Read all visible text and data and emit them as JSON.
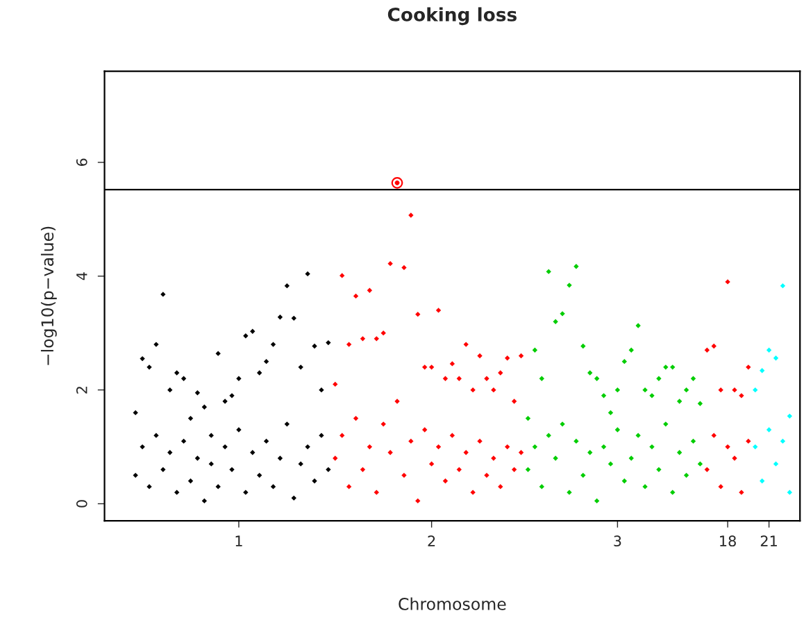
{
  "chart_data": {
    "type": "scatter",
    "title": "Cooking loss",
    "xlabel": "Chromosome",
    "ylabel": "−log10(p−value)",
    "categories": [
      null,
      null,
      null,
      null,
      null,
      null,
      null,
      null,
      null,
      null,
      null,
      null,
      null,
      null,
      null,
      null,
      null,
      null,
      null,
      "1",
      null,
      null,
      null,
      null,
      null,
      null,
      null,
      null,
      null,
      null,
      null,
      null,
      null,
      null,
      null,
      null,
      null,
      null,
      null,
      null,
      null,
      null,
      null,
      null,
      null,
      null,
      null,
      "2",
      null,
      null,
      null,
      null,
      null,
      null,
      null,
      null,
      null,
      null,
      null,
      null,
      null,
      null,
      null,
      null,
      null,
      null,
      null,
      null,
      null,
      null,
      null,
      null,
      null,
      null,
      "3",
      null,
      null,
      null,
      null,
      null,
      null,
      null,
      null,
      null,
      null,
      null,
      null,
      null,
      null,
      null,
      "18",
      null,
      null,
      null,
      null,
      null,
      "21",
      null,
      null,
      null,
      null
    ],
    "ylim": [
      -0.3,
      7.6
    ],
    "yticks": [
      0,
      2,
      4,
      6
    ],
    "grid": false,
    "marker": "diamond",
    "ref_lines": [
      {
        "axis": "y",
        "value": 5.52,
        "color": "#000000"
      }
    ],
    "series": [
      {
        "color": "#000000",
        "values": [
          null,
          null,
          null,
          null,
          1.6,
          2.55,
          2.4,
          2.8,
          3.68,
          2.0,
          2.3,
          2.2,
          1.5,
          1.95,
          1.7,
          1.2,
          2.64,
          1.8,
          1.9,
          2.2,
          2.95,
          3.03,
          2.3,
          2.5,
          2.8,
          3.28,
          3.83,
          3.26,
          2.4,
          4.04,
          2.77,
          2.0,
          2.83,
          null,
          null,
          null,
          null,
          null,
          null,
          null,
          null,
          null,
          null,
          null,
          null,
          null,
          null,
          null,
          null,
          null,
          null,
          null,
          null,
          null,
          null,
          null,
          null,
          null,
          null,
          null,
          null,
          null,
          null,
          null,
          null,
          null,
          null,
          null,
          null,
          null,
          null,
          null,
          null,
          null,
          null,
          null,
          null,
          null,
          null,
          null,
          null,
          null,
          null,
          null,
          null,
          null,
          null,
          null,
          null,
          null,
          null,
          null,
          null,
          null,
          null,
          null,
          null,
          null,
          null,
          null,
          null
        ]
      },
      {
        "color": "#000000",
        "values": [
          null,
          null,
          null,
          null,
          0.5,
          1.0,
          0.3,
          1.2,
          0.6,
          0.9,
          0.2,
          1.1,
          0.4,
          0.8,
          0.05,
          0.7,
          0.3,
          1.0,
          0.6,
          1.3,
          0.2,
          0.9,
          0.5,
          1.1,
          0.3,
          0.8,
          1.4,
          0.1,
          0.7,
          1.0,
          0.4,
          1.2,
          0.6,
          null,
          null,
          null,
          null,
          null,
          null,
          null,
          null,
          null,
          null,
          null,
          null,
          null,
          null,
          null,
          null,
          null,
          null,
          null,
          null,
          null,
          null,
          null,
          null,
          null,
          null,
          null,
          null,
          null,
          null,
          null,
          null,
          null,
          null,
          null,
          null,
          null,
          null,
          null,
          null,
          null,
          null,
          null,
          null,
          null,
          null,
          null,
          null,
          null,
          null,
          null,
          null,
          null,
          null,
          null,
          null,
          null,
          null,
          null,
          null,
          null,
          null,
          null,
          null,
          null,
          null,
          null,
          null
        ]
      },
      {
        "color": "#ff0000",
        "values": [
          null,
          null,
          null,
          null,
          null,
          null,
          null,
          null,
          null,
          null,
          null,
          null,
          null,
          null,
          null,
          null,
          null,
          null,
          null,
          null,
          null,
          null,
          null,
          null,
          null,
          null,
          null,
          null,
          null,
          null,
          null,
          null,
          null,
          2.1,
          4.01,
          2.8,
          3.65,
          2.9,
          3.75,
          2.9,
          3.0,
          4.22,
          5.64,
          4.15,
          5.07,
          3.33,
          2.4,
          2.4,
          3.4,
          2.2,
          2.46,
          2.2,
          2.8,
          2.0,
          2.6,
          2.2,
          2.0,
          2.3,
          2.56,
          1.8,
          2.6,
          null,
          null,
          null,
          null,
          null,
          null,
          null,
          null,
          null,
          null,
          null,
          null,
          null,
          null,
          null,
          null,
          null,
          null,
          null,
          null,
          null,
          null,
          null,
          null,
          null,
          null,
          null,
          null,
          null,
          null,
          null,
          null,
          null,
          null,
          null,
          null,
          null,
          null,
          null,
          null
        ]
      },
      {
        "color": "#ff0000",
        "values": [
          null,
          null,
          null,
          null,
          null,
          null,
          null,
          null,
          null,
          null,
          null,
          null,
          null,
          null,
          null,
          null,
          null,
          null,
          null,
          null,
          null,
          null,
          null,
          null,
          null,
          null,
          null,
          null,
          null,
          null,
          null,
          null,
          null,
          0.8,
          1.2,
          0.3,
          1.5,
          0.6,
          1.0,
          0.2,
          1.4,
          0.9,
          1.8,
          0.5,
          1.1,
          0.05,
          1.3,
          0.7,
          1.0,
          0.4,
          1.2,
          0.6,
          0.9,
          0.2,
          1.1,
          0.5,
          0.8,
          0.3,
          1.0,
          0.6,
          0.9,
          null,
          null,
          null,
          null,
          null,
          null,
          null,
          null,
          null,
          null,
          null,
          null,
          null,
          null,
          null,
          null,
          null,
          null,
          null,
          null,
          null,
          null,
          null,
          null,
          null,
          null,
          null,
          null,
          null,
          null,
          null,
          null,
          null,
          null,
          null,
          null,
          null,
          null,
          null,
          null
        ]
      },
      {
        "color": "#00cd00",
        "values": [
          null,
          null,
          null,
          null,
          null,
          null,
          null,
          null,
          null,
          null,
          null,
          null,
          null,
          null,
          null,
          null,
          null,
          null,
          null,
          null,
          null,
          null,
          null,
          null,
          null,
          null,
          null,
          null,
          null,
          null,
          null,
          null,
          null,
          null,
          null,
          null,
          null,
          null,
          null,
          null,
          null,
          null,
          null,
          null,
          null,
          null,
          null,
          null,
          null,
          null,
          null,
          null,
          null,
          null,
          null,
          null,
          null,
          null,
          null,
          null,
          null,
          1.5,
          2.7,
          2.2,
          4.08,
          3.2,
          3.34,
          3.84,
          4.17,
          2.77,
          2.3,
          2.2,
          1.9,
          1.6,
          2.0,
          2.5,
          2.7,
          3.13,
          2.0,
          1.9,
          2.2,
          2.4,
          2.4,
          1.8,
          2.0,
          2.2,
          1.76,
          null,
          null,
          null,
          null,
          null,
          null,
          null,
          null,
          null,
          null,
          null,
          null,
          null,
          null
        ]
      },
      {
        "color": "#00cd00",
        "values": [
          null,
          null,
          null,
          null,
          null,
          null,
          null,
          null,
          null,
          null,
          null,
          null,
          null,
          null,
          null,
          null,
          null,
          null,
          null,
          null,
          null,
          null,
          null,
          null,
          null,
          null,
          null,
          null,
          null,
          null,
          null,
          null,
          null,
          null,
          null,
          null,
          null,
          null,
          null,
          null,
          null,
          null,
          null,
          null,
          null,
          null,
          null,
          null,
          null,
          null,
          null,
          null,
          null,
          null,
          null,
          null,
          null,
          null,
          null,
          null,
          null,
          0.6,
          1.0,
          0.3,
          1.2,
          0.8,
          1.4,
          0.2,
          1.1,
          0.5,
          0.9,
          0.05,
          1.0,
          0.7,
          1.3,
          0.4,
          0.8,
          1.2,
          0.3,
          1.0,
          0.6,
          1.4,
          0.2,
          0.9,
          0.5,
          1.1,
          0.7,
          null,
          null,
          null,
          null,
          null,
          null,
          null,
          null,
          null,
          null,
          null,
          null,
          null,
          null
        ]
      },
      {
        "color": "#ff0000",
        "values": [
          null,
          null,
          null,
          null,
          null,
          null,
          null,
          null,
          null,
          null,
          null,
          null,
          null,
          null,
          null,
          null,
          null,
          null,
          null,
          null,
          null,
          null,
          null,
          null,
          null,
          null,
          null,
          null,
          null,
          null,
          null,
          null,
          null,
          null,
          null,
          null,
          null,
          null,
          null,
          null,
          null,
          null,
          null,
          null,
          null,
          null,
          null,
          null,
          null,
          null,
          null,
          null,
          null,
          null,
          null,
          null,
          null,
          null,
          null,
          null,
          null,
          null,
          null,
          null,
          null,
          null,
          null,
          null,
          null,
          null,
          null,
          null,
          null,
          null,
          null,
          null,
          null,
          null,
          null,
          null,
          null,
          null,
          null,
          null,
          null,
          null,
          null,
          2.7,
          2.77,
          2.0,
          3.9,
          2.0,
          1.9,
          2.4,
          null,
          null,
          null,
          null,
          null,
          null,
          null
        ]
      },
      {
        "color": "#ff0000",
        "values": [
          null,
          null,
          null,
          null,
          null,
          null,
          null,
          null,
          null,
          null,
          null,
          null,
          null,
          null,
          null,
          null,
          null,
          null,
          null,
          null,
          null,
          null,
          null,
          null,
          null,
          null,
          null,
          null,
          null,
          null,
          null,
          null,
          null,
          null,
          null,
          null,
          null,
          null,
          null,
          null,
          null,
          null,
          null,
          null,
          null,
          null,
          null,
          null,
          null,
          null,
          null,
          null,
          null,
          null,
          null,
          null,
          null,
          null,
          null,
          null,
          null,
          null,
          null,
          null,
          null,
          null,
          null,
          null,
          null,
          null,
          null,
          null,
          null,
          null,
          null,
          null,
          null,
          null,
          null,
          null,
          null,
          null,
          null,
          null,
          null,
          null,
          null,
          0.6,
          1.2,
          0.3,
          1.0,
          0.8,
          0.2,
          1.1,
          null,
          null,
          null,
          null,
          null,
          null,
          null
        ]
      },
      {
        "color": "#00ffff",
        "values": [
          null,
          null,
          null,
          null,
          null,
          null,
          null,
          null,
          null,
          null,
          null,
          null,
          null,
          null,
          null,
          null,
          null,
          null,
          null,
          null,
          null,
          null,
          null,
          null,
          null,
          null,
          null,
          null,
          null,
          null,
          null,
          null,
          null,
          null,
          null,
          null,
          null,
          null,
          null,
          null,
          null,
          null,
          null,
          null,
          null,
          null,
          null,
          null,
          null,
          null,
          null,
          null,
          null,
          null,
          null,
          null,
          null,
          null,
          null,
          null,
          null,
          null,
          null,
          null,
          null,
          null,
          null,
          null,
          null,
          null,
          null,
          null,
          null,
          null,
          null,
          null,
          null,
          null,
          null,
          null,
          null,
          null,
          null,
          null,
          null,
          null,
          null,
          null,
          null,
          null,
          null,
          null,
          null,
          null,
          2.0,
          2.34,
          2.7,
          2.56,
          3.83,
          1.54,
          null
        ]
      },
      {
        "color": "#00ffff",
        "values": [
          null,
          null,
          null,
          null,
          null,
          null,
          null,
          null,
          null,
          null,
          null,
          null,
          null,
          null,
          null,
          null,
          null,
          null,
          null,
          null,
          null,
          null,
          null,
          null,
          null,
          null,
          null,
          null,
          null,
          null,
          null,
          null,
          null,
          null,
          null,
          null,
          null,
          null,
          null,
          null,
          null,
          null,
          null,
          null,
          null,
          null,
          null,
          null,
          null,
          null,
          null,
          null,
          null,
          null,
          null,
          null,
          null,
          null,
          null,
          null,
          null,
          null,
          null,
          null,
          null,
          null,
          null,
          null,
          null,
          null,
          null,
          null,
          null,
          null,
          null,
          null,
          null,
          null,
          null,
          null,
          null,
          null,
          null,
          null,
          null,
          null,
          null,
          null,
          null,
          null,
          null,
          null,
          null,
          null,
          1.0,
          0.4,
          1.3,
          0.7,
          1.1,
          0.2,
          null
        ]
      },
      {
        "marker": "circle",
        "color": "#ff0000",
        "values": [
          null,
          null,
          null,
          null,
          null,
          null,
          null,
          null,
          null,
          null,
          null,
          null,
          null,
          null,
          null,
          null,
          null,
          null,
          null,
          null,
          null,
          null,
          null,
          null,
          null,
          null,
          null,
          null,
          null,
          null,
          null,
          null,
          null,
          null,
          null,
          null,
          null,
          null,
          null,
          null,
          null,
          null,
          5.64,
          null,
          null,
          null,
          null,
          null,
          null,
          null,
          null,
          null,
          null,
          null,
          null,
          null,
          null,
          null,
          null,
          null,
          null,
          null,
          null,
          null,
          null,
          null,
          null,
          null,
          null,
          null,
          null,
          null,
          null,
          null,
          null,
          null,
          null,
          null,
          null,
          null,
          null,
          null,
          null,
          null,
          null,
          null,
          null,
          null,
          null,
          null,
          null,
          null,
          null,
          null,
          null,
          null,
          null,
          null,
          null,
          null,
          null
        ]
      }
    ]
  }
}
